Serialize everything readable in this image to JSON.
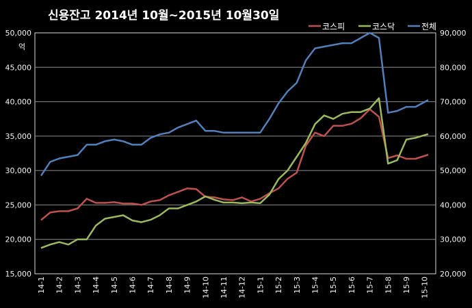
{
  "chart_data": {
    "type": "line",
    "title": "신용잔고  2014년 10월~2015년 10월30일",
    "left_unit": "억",
    "left_axis": {
      "ylim": [
        15000,
        50000
      ],
      "ticks": [
        "15,000",
        "20,000",
        "25,000",
        "30,000",
        "35,000",
        "40,000",
        "45,000",
        "50,000"
      ]
    },
    "right_axis": {
      "ylim": [
        20000,
        90000
      ],
      "ticks": [
        "20,000",
        "30,000",
        "40,000",
        "50,000",
        "60,000",
        "70,000",
        "80,000",
        "90,000"
      ]
    },
    "grid": "horizontal",
    "legend_position": "top-right",
    "x_tick_labels": [
      "14-1",
      "14-2",
      "14-3",
      "14-4",
      "14-5",
      "14-6",
      "14-7",
      "14-8",
      "14-9",
      "14-10",
      "14-11",
      "14-12",
      "15-1",
      "15-2",
      "15-3",
      "15-4",
      "15-5",
      "15-6",
      "15-7",
      "15-8",
      "15-9",
      "15-10"
    ],
    "x": [
      0,
      0.5,
      1,
      1.5,
      2,
      2.5,
      3,
      3.5,
      4,
      4.5,
      5,
      5.5,
      6,
      6.5,
      7,
      7.5,
      8,
      8.5,
      9,
      9.5,
      10,
      10.5,
      11,
      11.5,
      12,
      12.5,
      13,
      13.5,
      14,
      14.5,
      15,
      15.5,
      16,
      16.5,
      17,
      17.5,
      18,
      18.5,
      19,
      19.5,
      20,
      20.5,
      21.2
    ],
    "series": [
      {
        "name": "코스피",
        "color": "#c0504d",
        "axis": "left",
        "values": [
          22800,
          23900,
          24100,
          24100,
          24500,
          25900,
          25300,
          25300,
          25400,
          25200,
          25200,
          25000,
          25500,
          25700,
          26400,
          26900,
          27400,
          27300,
          26200,
          26100,
          25800,
          25700,
          26100,
          25500,
          25900,
          26700,
          27400,
          28800,
          29700,
          33600,
          35500,
          35000,
          36500,
          36500,
          36800,
          37600,
          38900,
          37800,
          31800,
          32200,
          31700,
          31700,
          32300
        ]
      },
      {
        "name": "코스닥",
        "color": "#9bbb59",
        "axis": "right",
        "values": [
          27500,
          28500,
          29200,
          28500,
          30000,
          30000,
          34000,
          36000,
          36500,
          37000,
          35500,
          35000,
          35700,
          37000,
          39000,
          39000,
          40000,
          41000,
          42500,
          41500,
          40700,
          40700,
          40500,
          40700,
          40500,
          43000,
          47500,
          50000,
          54000,
          58000,
          63500,
          66000,
          65000,
          66500,
          67000,
          67000,
          68000,
          71000,
          52000,
          53000,
          59000,
          59500,
          60600
        ]
      },
      {
        "name": "전체",
        "color": "#4f81bd",
        "axis": "right",
        "values": [
          48500,
          52500,
          53500,
          54000,
          54500,
          57500,
          57500,
          58500,
          59000,
          58500,
          57500,
          57500,
          59500,
          60500,
          61000,
          62500,
          63500,
          64500,
          61500,
          61500,
          61000,
          61000,
          61000,
          61000,
          61000,
          65000,
          69500,
          73000,
          75500,
          82000,
          85500,
          86000,
          86500,
          87000,
          87000,
          88500,
          90000,
          88500,
          66800,
          67300,
          68500,
          68500,
          70500
        ]
      }
    ]
  }
}
